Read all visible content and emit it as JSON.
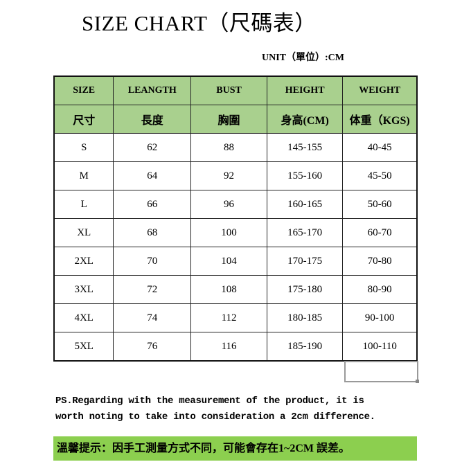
{
  "title": "SIZE CHART（尺碼表）",
  "unit": "UNIT（單位）:CM",
  "headers_en": [
    "SIZE",
    "LEANGTH",
    "BUST",
    "HEIGHT",
    "WEIGHT"
  ],
  "headers_zh": [
    "尺寸",
    "長度",
    "胸圍",
    "身高(CM)",
    "体重（KGS)"
  ],
  "rows": [
    [
      "S",
      "62",
      "88",
      "145-155",
      "40-45"
    ],
    [
      "M",
      "64",
      "92",
      "155-160",
      "45-50"
    ],
    [
      "L",
      "66",
      "96",
      "160-165",
      "50-60"
    ],
    [
      "XL",
      "68",
      "100",
      "165-170",
      "60-70"
    ],
    [
      "2XL",
      "70",
      "104",
      "170-175",
      "70-80"
    ],
    [
      "3XL",
      "72",
      "108",
      "175-180",
      "80-90"
    ],
    [
      "4XL",
      "74",
      "112",
      "180-185",
      "90-100"
    ],
    [
      "5XL",
      "76",
      "116",
      "185-190",
      "100-110"
    ]
  ],
  "note_line1": "PS.Regarding with the measurement of the product, it is",
  "note_line2": "worth noting to take into consideration a 2cm difference.",
  "warm_tip": "溫馨提示：因手工測量方式不同，可能會存在1~2CM 誤差。",
  "colors": {
    "header_green": "#a9d08e",
    "tip_green": "#8ccf4f"
  }
}
